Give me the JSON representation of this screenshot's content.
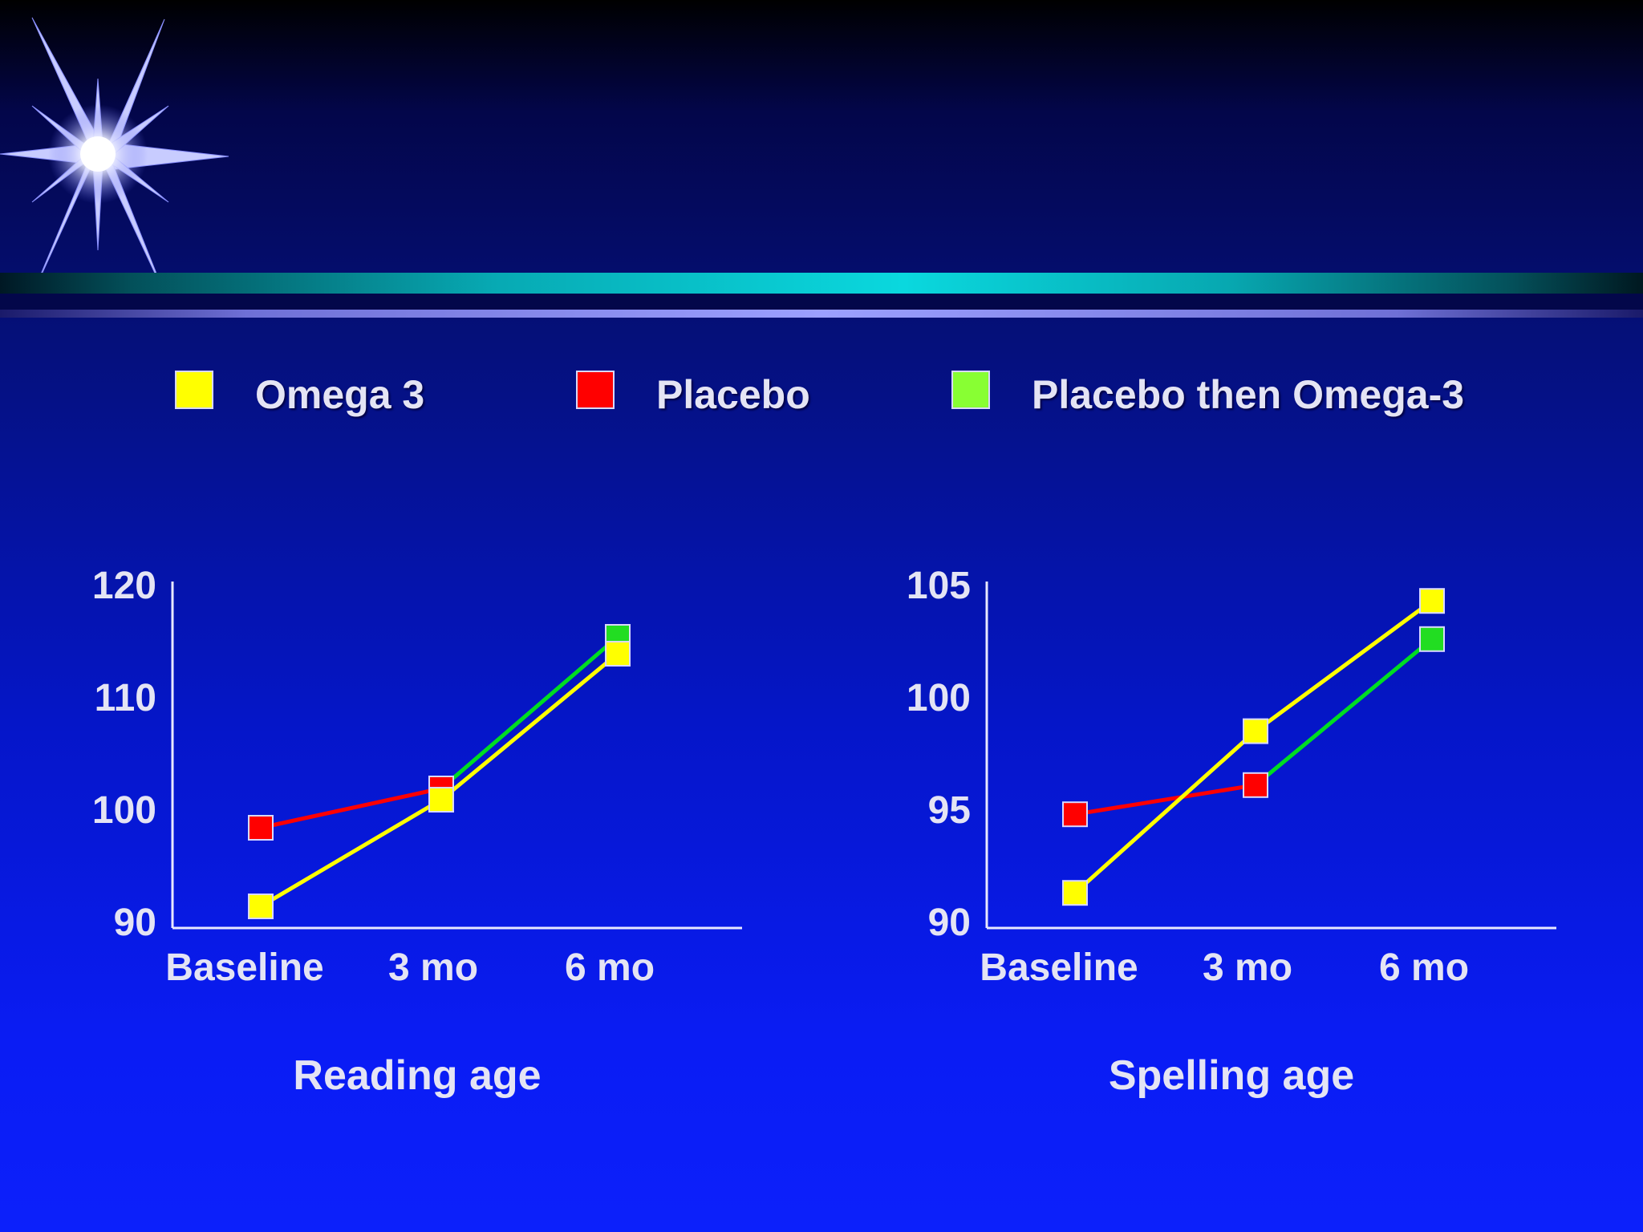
{
  "legend": [
    {
      "label": "Omega 3",
      "color": "#ffff00"
    },
    {
      "label": "Placebo",
      "color": "#ff0000"
    },
    {
      "label": "Placebo then Omega-3",
      "color": "#88ff33"
    }
  ],
  "chart_data": [
    {
      "type": "line",
      "title": "Reading age",
      "categories": [
        "Baseline",
        "3 mo",
        "6 mo"
      ],
      "ylim": [
        90,
        120
      ],
      "yticks": [
        90,
        100,
        110,
        120
      ],
      "grid": false,
      "series": [
        {
          "name": "Omega 3",
          "color": "#ffff00",
          "values": [
            92,
            101.5,
            114.5
          ]
        },
        {
          "name": "Placebo",
          "color": "#ff0000",
          "values": [
            99,
            102.5,
            null
          ]
        },
        {
          "name": "Placebo then Omega-3",
          "color": "#00dd22",
          "values": [
            null,
            102.5,
            116
          ]
        }
      ]
    },
    {
      "type": "line",
      "title": "Spelling age",
      "categories": [
        "Baseline",
        "3 mo",
        "6 mo"
      ],
      "ylim": [
        90,
        105
      ],
      "yticks": [
        90,
        95,
        100,
        105
      ],
      "grid": false,
      "series": [
        {
          "name": "Omega 3",
          "color": "#ffff00",
          "values": [
            91.6,
            98.8,
            104.6
          ]
        },
        {
          "name": "Placebo",
          "color": "#ff0000",
          "values": [
            95.1,
            96.4,
            null
          ]
        },
        {
          "name": "Placebo then Omega-3",
          "color": "#00dd22",
          "values": [
            null,
            96.4,
            102.9
          ]
        }
      ]
    }
  ]
}
